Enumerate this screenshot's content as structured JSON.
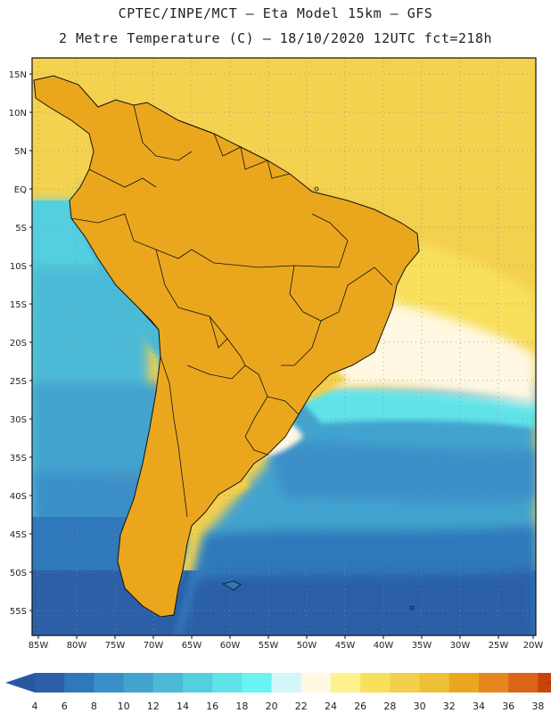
{
  "header": {
    "line1": "CPTEC/INPE/MCT –  Eta Model 15km – GFS",
    "line2": "2 Metre Temperature (C) – 18/10/2020 12UTC fct=218h"
  },
  "axes": {
    "lat_labels": [
      "15N",
      "10N",
      "5N",
      "EQ",
      "5S",
      "10S",
      "15S",
      "20S",
      "25S",
      "30S",
      "35S",
      "40S",
      "45S",
      "50S",
      "55S"
    ],
    "lon_labels": [
      "85W",
      "80W",
      "75W",
      "70W",
      "65W",
      "60W",
      "55W",
      "50W",
      "45W",
      "40W",
      "35W",
      "30W",
      "25W",
      "20W"
    ]
  },
  "colorbar": {
    "labels": [
      "4",
      "6",
      "8",
      "10",
      "12",
      "14",
      "16",
      "18",
      "20",
      "22",
      "24",
      "26",
      "28",
      "30",
      "32",
      "34",
      "36",
      "38"
    ],
    "colors": [
      "#2c5fa8",
      "#2e78bb",
      "#3a8fc8",
      "#43a3cf",
      "#4cbad7",
      "#54cfdf",
      "#5ee3e8",
      "#69f4f3",
      "#d3f6fb",
      "#fff8e2",
      "#fdf28e",
      "#f8e05c",
      "#f3cf4c",
      "#eec038",
      "#eaa71e",
      "#e6871d",
      "#dc6416",
      "#c7440c"
    ],
    "low_color": "#2a58a0",
    "high_color": "#b8340a"
  }
}
